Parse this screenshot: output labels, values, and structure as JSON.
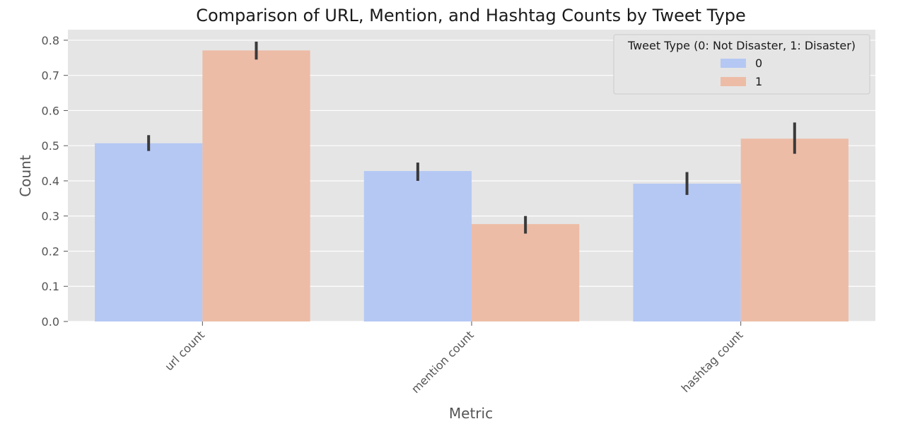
{
  "chart_data": {
    "type": "bar",
    "title": "Comparison of URL, Mention, and Hashtag Counts by Tweet Type",
    "xlabel": "Metric",
    "ylabel": "Count",
    "categories": [
      "url count",
      "mention count",
      "hashtag count"
    ],
    "ylim": [
      0,
      0.83
    ],
    "yticks": [
      0.0,
      0.1,
      0.2,
      0.3,
      0.4,
      0.5,
      0.6,
      0.7,
      0.8
    ],
    "ytick_labels": [
      "0.0",
      "0.1",
      "0.2",
      "0.3",
      "0.4",
      "0.5",
      "0.6",
      "0.7",
      "0.8"
    ],
    "grid": true,
    "legend": {
      "title": "Tweet Type (0: Not Disaster, 1: Disaster)",
      "placement": "top-right"
    },
    "series": [
      {
        "name": "0",
        "color": "#b5c8f4",
        "values": [
          0.507,
          0.428,
          0.392
        ],
        "error_low": [
          0.485,
          0.4,
          0.36
        ],
        "error_high": [
          0.53,
          0.452,
          0.425
        ]
      },
      {
        "name": "1",
        "color": "#edbca6",
        "values": [
          0.771,
          0.277,
          0.52
        ],
        "error_low": [
          0.745,
          0.25,
          0.477
        ],
        "error_high": [
          0.796,
          0.3,
          0.566
        ]
      }
    ],
    "colors": {
      "plot_background": "#e5e5e5",
      "grid": "#ffffff",
      "error_bar": "#3a3a3a"
    }
  }
}
